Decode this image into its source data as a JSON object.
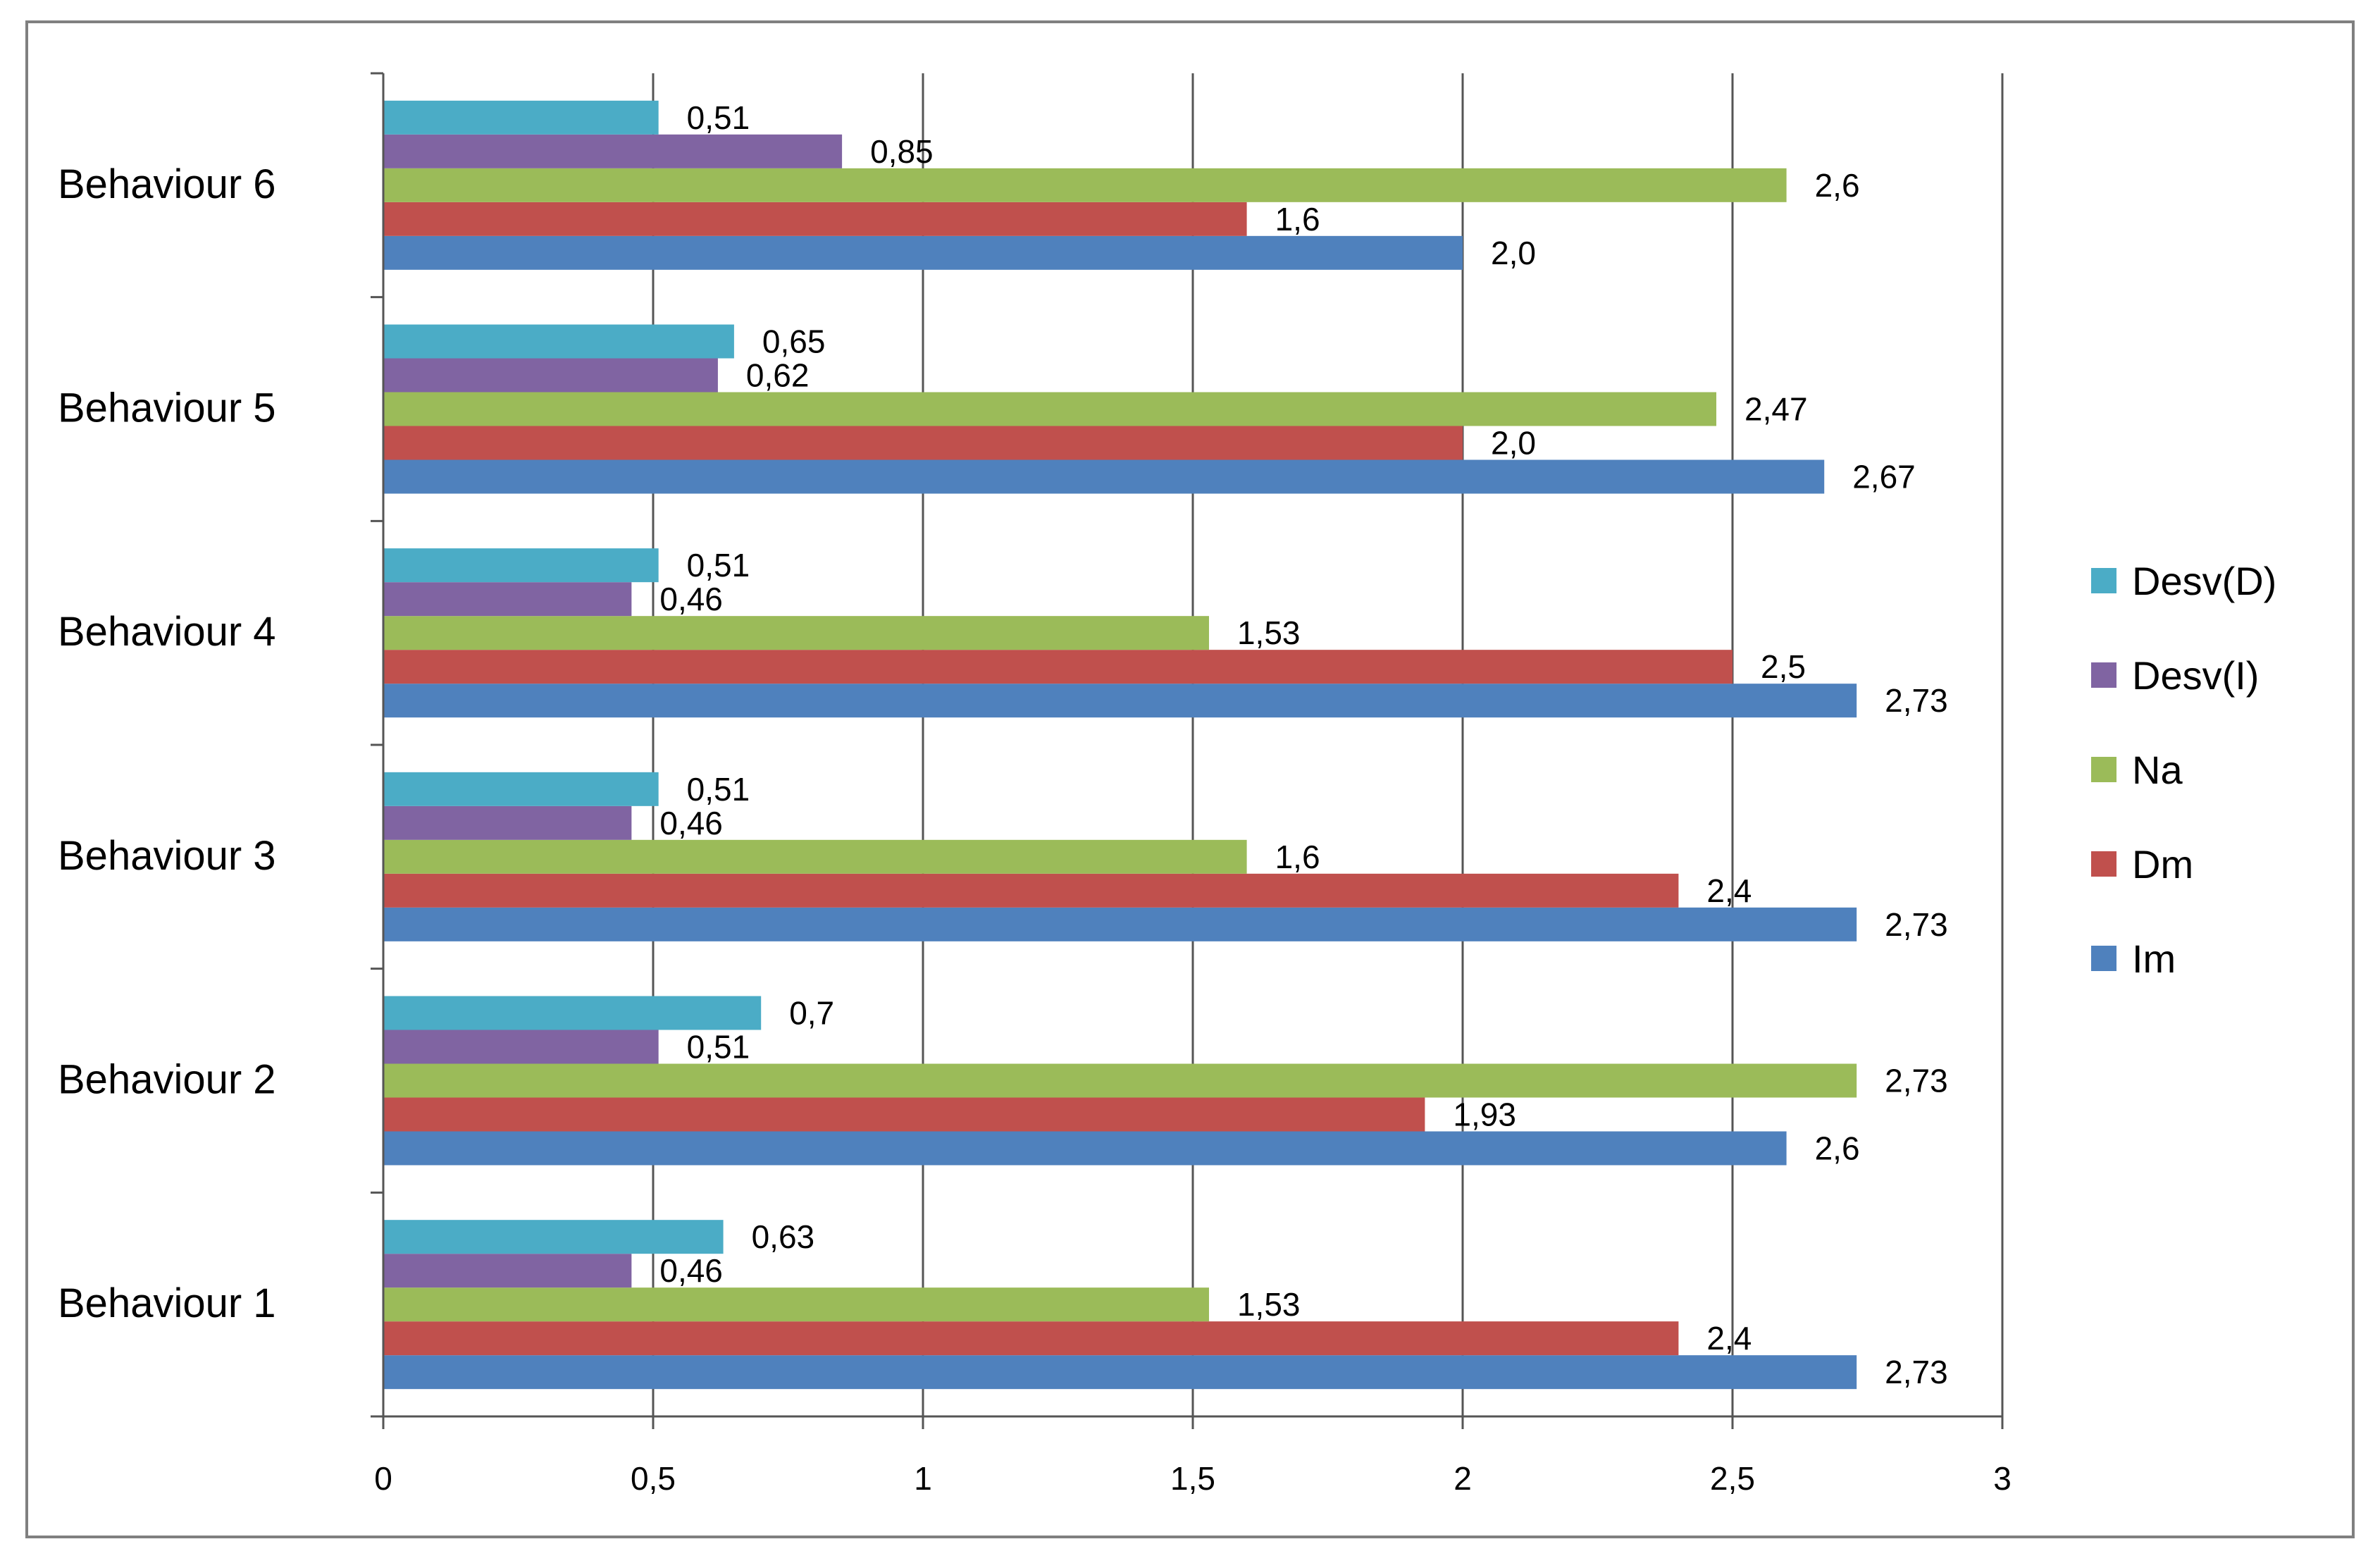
{
  "colors": {
    "Im": "#4F81BD",
    "Dm": "#C0504D",
    "Na": "#9BBB59",
    "Desv(I)": "#8064A2",
    "Desv(D)": "#4BACC6",
    "gridline": "#555555",
    "frame": "#808080",
    "text": "#000000"
  },
  "chart_data": {
    "type": "bar",
    "orientation": "horizontal",
    "title": "",
    "xlabel": "",
    "ylabel": "",
    "xlim": [
      0,
      3
    ],
    "x_ticks": [
      "0",
      "0,5",
      "1",
      "1,5",
      "2",
      "2,5",
      "3"
    ],
    "grid": true,
    "legend_position": "right",
    "categories": [
      "Behaviour 1",
      "Behaviour 2",
      "Behaviour 3",
      "Behaviour 4",
      "Behaviour 5",
      "Behaviour 6"
    ],
    "series": [
      {
        "name": "Im",
        "values": [
          2.73,
          2.6,
          2.73,
          2.73,
          2.67,
          2.0
        ],
        "labels": [
          "2,73",
          "2,6",
          "2,73",
          "2,73",
          "2,67",
          "2,0"
        ]
      },
      {
        "name": "Dm",
        "values": [
          2.4,
          1.93,
          2.4,
          2.5,
          2.0,
          1.6
        ],
        "labels": [
          "2,4",
          "1,93",
          "2,4",
          "2,5",
          "2,0",
          "1,6"
        ]
      },
      {
        "name": "Na",
        "values": [
          1.53,
          2.73,
          1.6,
          1.53,
          2.47,
          2.6
        ],
        "labels": [
          "1,53",
          "2,73",
          "1,6",
          "1,53",
          "2,47",
          "2,6"
        ]
      },
      {
        "name": "Desv(I)",
        "values": [
          0.46,
          0.51,
          0.46,
          0.46,
          0.62,
          0.85
        ],
        "labels": [
          "0,46",
          "0,51",
          "0,46",
          "0,46",
          "0,62",
          "0,85"
        ]
      },
      {
        "name": "Desv(D)",
        "values": [
          0.63,
          0.7,
          0.51,
          0.51,
          0.65,
          0.51
        ],
        "labels": [
          "0,63",
          "0,7",
          "0,51",
          "0,51",
          "0,65",
          "0,51"
        ]
      }
    ],
    "legend_order": [
      "Desv(D)",
      "Desv(I)",
      "Na",
      "Dm",
      "Im"
    ]
  }
}
